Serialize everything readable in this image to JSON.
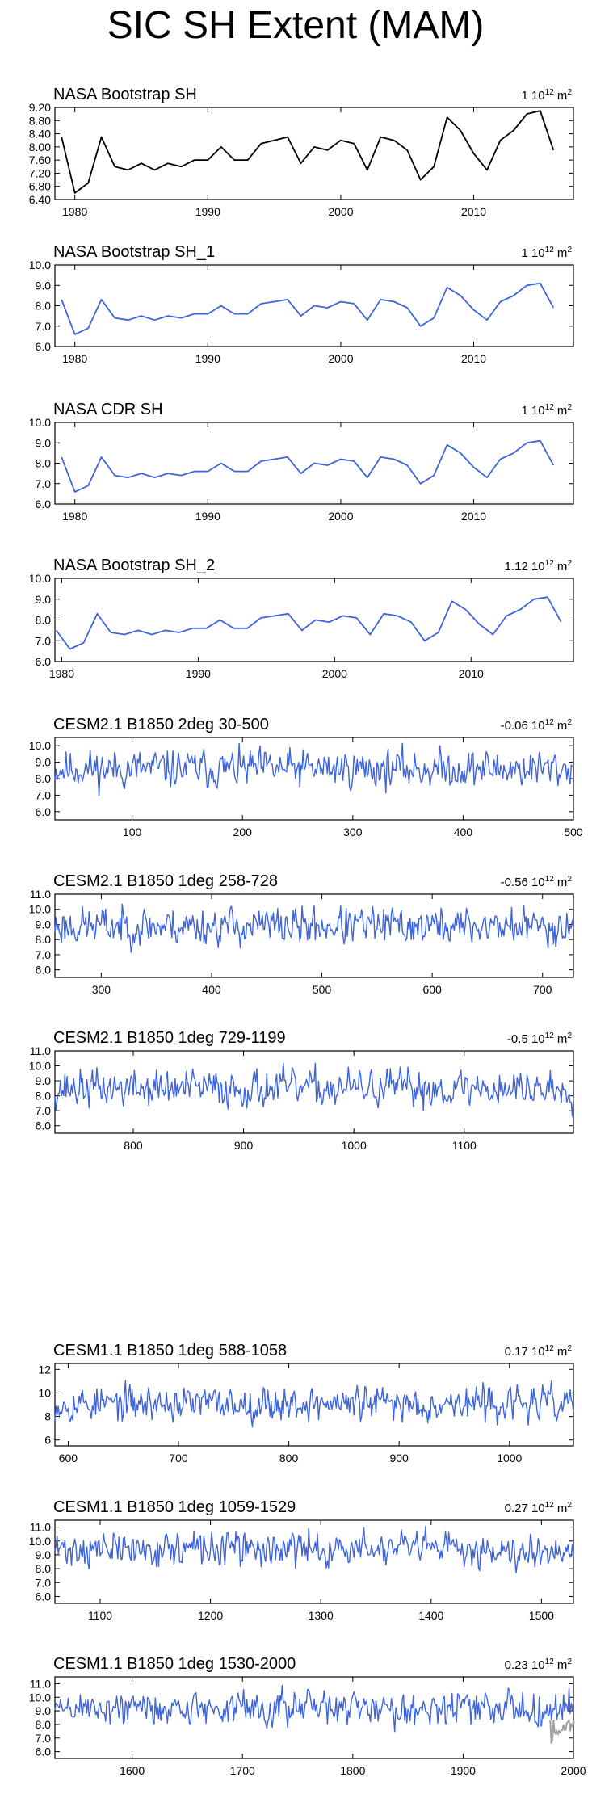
{
  "chart_data": {
    "title": "SIC SH Extent (MAM)",
    "panels": [
      {
        "type": "line",
        "title": "NASA Bootstrap SH",
        "trend": "1",
        "unit": "10",
        "exponent": "12",
        "unit_suffix": "m",
        "unit_exponent": "2",
        "color": "#000000",
        "xlim": [
          1978.5,
          2017.5
        ],
        "ylim": [
          6.4,
          9.2
        ],
        "yticks": [
          "6.40",
          "6.80",
          "7.20",
          "7.60",
          "8.00",
          "8.40",
          "8.80",
          "9.20"
        ],
        "xticks": [
          "1980",
          "1990",
          "2000",
          "2010"
        ],
        "x_start": 1979,
        "values": [
          8.3,
          6.6,
          6.9,
          8.3,
          7.4,
          7.3,
          7.5,
          7.3,
          7.5,
          7.4,
          7.6,
          7.6,
          8.0,
          7.6,
          7.6,
          8.1,
          8.2,
          8.3,
          7.5,
          8.0,
          7.9,
          8.2,
          8.1,
          7.3,
          8.3,
          8.2,
          7.9,
          7.0,
          7.4,
          8.9,
          8.5,
          7.8,
          7.3,
          8.2,
          8.5,
          9.0,
          9.1,
          7.9
        ]
      },
      {
        "type": "line",
        "title": "NASA Bootstrap SH_1",
        "trend": "1",
        "unit": "10",
        "exponent": "12",
        "unit_suffix": "m",
        "unit_exponent": "2",
        "color": "#3e64db",
        "xlim": [
          1978.5,
          2017.5
        ],
        "ylim": [
          6.0,
          10.0
        ],
        "yticks": [
          "6.0",
          "7.0",
          "8.0",
          "9.0",
          "10.0"
        ],
        "xticks": [
          "1980",
          "1990",
          "2000",
          "2010"
        ],
        "x_start": 1979,
        "values": [
          8.3,
          6.6,
          6.9,
          8.3,
          7.4,
          7.3,
          7.5,
          7.3,
          7.5,
          7.4,
          7.6,
          7.6,
          8.0,
          7.6,
          7.6,
          8.1,
          8.2,
          8.3,
          7.5,
          8.0,
          7.9,
          8.2,
          8.1,
          7.3,
          8.3,
          8.2,
          7.9,
          7.0,
          7.4,
          8.9,
          8.5,
          7.8,
          7.3,
          8.2,
          8.5,
          9.0,
          9.1,
          7.9
        ]
      },
      {
        "type": "line",
        "title": "NASA CDR SH",
        "trend": "1",
        "unit": "10",
        "exponent": "12",
        "unit_suffix": "m",
        "unit_exponent": "2",
        "color": "#3e64db",
        "xlim": [
          1978.5,
          2017.5
        ],
        "ylim": [
          6.0,
          10.0
        ],
        "yticks": [
          "6.0",
          "7.0",
          "8.0",
          "9.0",
          "10.0"
        ],
        "xticks": [
          "1980",
          "1990",
          "2000",
          "2010"
        ],
        "x_start": 1979,
        "values": [
          8.3,
          6.6,
          6.9,
          8.3,
          7.4,
          7.3,
          7.5,
          7.3,
          7.5,
          7.4,
          7.6,
          7.6,
          8.0,
          7.6,
          7.6,
          8.1,
          8.2,
          8.3,
          7.5,
          8.0,
          7.9,
          8.2,
          8.1,
          7.3,
          8.3,
          8.2,
          7.9,
          7.0,
          7.4,
          8.9,
          8.5,
          7.8,
          7.3,
          8.2,
          8.5,
          9.0,
          9.1,
          7.9
        ]
      },
      {
        "type": "line",
        "title": "NASA Bootstrap SH_2",
        "trend": "1.12",
        "unit": "10",
        "exponent": "12",
        "unit_suffix": "m",
        "unit_exponent": "2",
        "color": "#3e64db",
        "xlim": [
          1979.5,
          2017.5
        ],
        "ylim": [
          6.0,
          10.0
        ],
        "yticks": [
          "6.0",
          "7.0",
          "8.0",
          "9.0",
          "10.0"
        ],
        "xticks": [
          "1980",
          "1990",
          "2000",
          "2010"
        ],
        "x_start": 1979.6,
        "values": [
          7.5,
          6.6,
          6.9,
          8.3,
          7.4,
          7.3,
          7.5,
          7.3,
          7.5,
          7.4,
          7.6,
          7.6,
          8.0,
          7.6,
          7.6,
          8.1,
          8.2,
          8.3,
          7.5,
          8.0,
          7.9,
          8.2,
          8.1,
          7.3,
          8.3,
          8.2,
          7.9,
          7.0,
          7.4,
          8.9,
          8.5,
          7.8,
          7.3,
          8.2,
          8.5,
          9.0,
          9.1,
          7.9
        ]
      },
      {
        "type": "line",
        "title": "CESM2.1 B1850 2deg 30-500",
        "trend": "-0.06",
        "unit": "10",
        "exponent": "12",
        "unit_suffix": "m",
        "unit_exponent": "2",
        "color": "#3e64db",
        "xlim": [
          30,
          500
        ],
        "ylim": [
          5.5,
          10.5
        ],
        "yticks": [
          "6.0",
          "7.0",
          "8.0",
          "9.0",
          "10.0"
        ],
        "xticks": [
          "100",
          "200",
          "300",
          "400",
          "500"
        ],
        "synthetic": {
          "x_start": 30,
          "x_end": 500,
          "mean": 8.6,
          "amp": 0.55,
          "seed": 11
        }
      },
      {
        "type": "line",
        "title": "CESM2.1 B1850 1deg 258-728",
        "trend": "-0.56",
        "unit": "10",
        "exponent": "12",
        "unit_suffix": "m",
        "unit_exponent": "2",
        "color": "#3e64db",
        "xlim": [
          258,
          728
        ],
        "ylim": [
          5.5,
          11.0
        ],
        "yticks": [
          "6.0",
          "7.0",
          "8.0",
          "9.0",
          "10.0",
          "11.0"
        ],
        "xticks": [
          "300",
          "400",
          "500",
          "600",
          "700"
        ],
        "synthetic": {
          "x_start": 258,
          "x_end": 728,
          "mean": 8.9,
          "amp": 0.6,
          "seed": 23
        }
      },
      {
        "type": "line",
        "title": "CESM2.1 B1850 1deg 729-1199",
        "trend": "-0.5",
        "unit": "10",
        "exponent": "12",
        "unit_suffix": "m",
        "unit_exponent": "2",
        "color": "#3e64db",
        "xlim": [
          729,
          1199
        ],
        "ylim": [
          5.5,
          11.0
        ],
        "yticks": [
          "6.0",
          "7.0",
          "8.0",
          "9.0",
          "10.0",
          "11.0"
        ],
        "xticks": [
          "800",
          "900",
          "1000",
          "1100"
        ],
        "synthetic": {
          "x_start": 729,
          "x_end": 1199,
          "mean": 8.5,
          "amp": 0.6,
          "seed": 37
        }
      },
      {
        "type": "line",
        "title": "CESM1.1 B1850 1deg 588-1058",
        "trend": "0.17",
        "unit": "10",
        "exponent": "12",
        "unit_suffix": "m",
        "unit_exponent": "2",
        "color": "#3e64db",
        "xlim": [
          588,
          1058
        ],
        "ylim": [
          5.5,
          12.5
        ],
        "yticks": [
          "6",
          "8",
          "10",
          "12"
        ],
        "xticks": [
          "600",
          "700",
          "800",
          "900",
          "1000"
        ],
        "synthetic": {
          "x_start": 588,
          "x_end": 1058,
          "mean": 9.1,
          "amp": 0.7,
          "seed": 53
        }
      },
      {
        "type": "line",
        "title": "CESM1.1 B1850 1deg 1059-1529",
        "trend": "0.27",
        "unit": "10",
        "exponent": "12",
        "unit_suffix": "m",
        "unit_exponent": "2",
        "color": "#3e64db",
        "xlim": [
          1059,
          1529
        ],
        "ylim": [
          5.5,
          11.5
        ],
        "yticks": [
          "6.0",
          "7.0",
          "8.0",
          "9.0",
          "10.0",
          "11.0"
        ],
        "xticks": [
          "1100",
          "1200",
          "1300",
          "1400",
          "1500"
        ],
        "synthetic": {
          "x_start": 1059,
          "x_end": 1529,
          "mean": 9.4,
          "amp": 0.6,
          "seed": 71
        }
      },
      {
        "type": "line",
        "title": "CESM1.1 B1850 1deg 1530-2000",
        "trend": "0.23",
        "unit": "10",
        "exponent": "12",
        "unit_suffix": "m",
        "unit_exponent": "2",
        "color": "#3e64db",
        "xlim": [
          1530,
          2000
        ],
        "ylim": [
          5.5,
          11.5
        ],
        "yticks": [
          "6.0",
          "7.0",
          "8.0",
          "9.0",
          "10.0",
          "11.0"
        ],
        "xticks": [
          "1600",
          "1700",
          "1800",
          "1900",
          "2000"
        ],
        "synthetic": {
          "x_start": 1530,
          "x_end": 2000,
          "mean": 9.2,
          "amp": 0.6,
          "seed": 89
        },
        "overlay": {
          "color": "#a0a0a0",
          "x_start": 1979,
          "values": [
            8.3,
            6.6,
            6.9,
            8.3,
            7.4,
            7.3,
            7.5,
            7.3,
            7.5,
            7.4,
            7.6,
            7.6,
            8.0,
            7.6,
            7.6,
            8.1,
            8.2,
            8.3,
            7.5,
            8.0,
            7.9,
            8.2,
            8.1
          ]
        }
      }
    ]
  }
}
